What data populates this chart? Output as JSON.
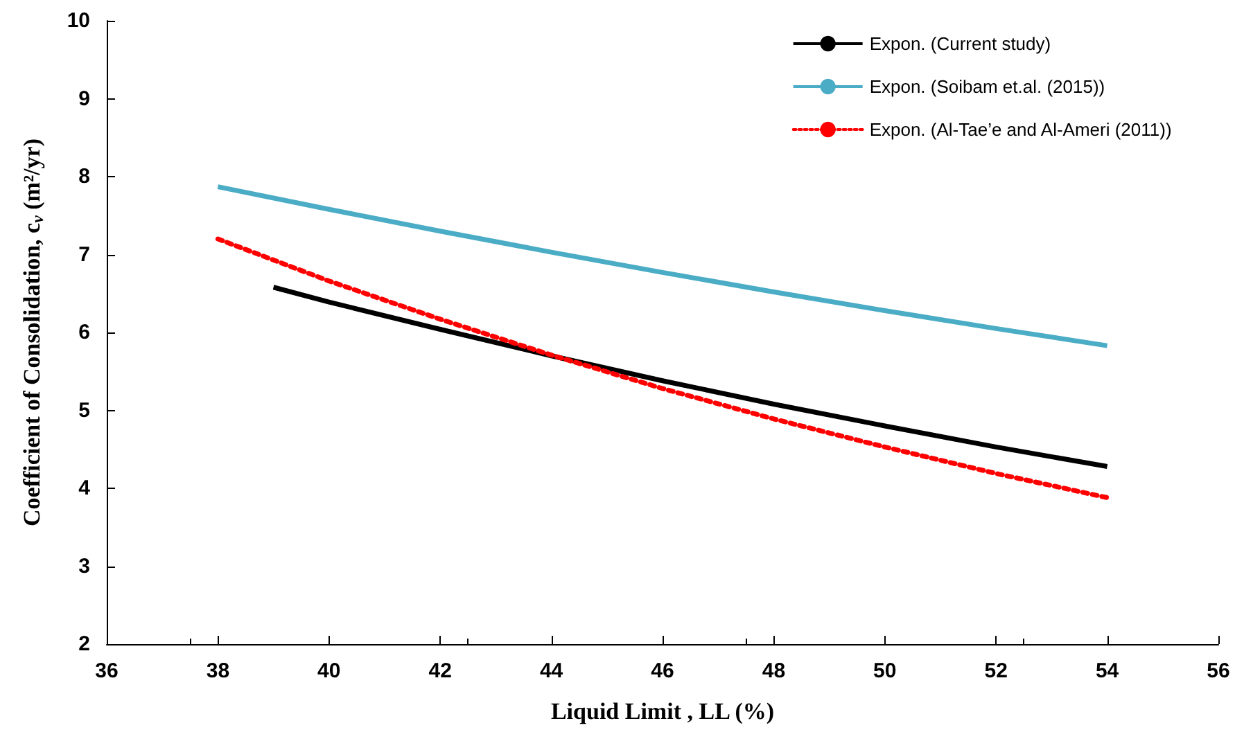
{
  "chart_data": {
    "type": "line",
    "xlabel": "Liquid Limit , LL (%)",
    "ylabel": "Coefficient of Consolidation, c$_{v}$ (m²/yr)",
    "xlim": [
      36,
      56
    ],
    "xticks": [
      36,
      38,
      40,
      42,
      44,
      46,
      48,
      50,
      52,
      54,
      56
    ],
    "ylim": [
      2,
      10
    ],
    "yticks": [
      2,
      3,
      4,
      5,
      6,
      7,
      8,
      9,
      10
    ],
    "grid": false,
    "legend": "top right",
    "marker": "none",
    "series": [
      {
        "name": "Expon. (Current study)",
        "color": "#000000",
        "line_style": "solid",
        "x": [
          39,
          40,
          42,
          44,
          46,
          48,
          50,
          52,
          54
        ],
        "values": [
          6.58,
          6.39,
          6.04,
          5.7,
          5.38,
          5.08,
          4.8,
          4.53,
          4.28
        ]
      },
      {
        "name": "Expon. (Soibam et.al. (2015))",
        "color": "#4bacc6",
        "line_style": "solid",
        "x": [
          38,
          40,
          42,
          44,
          46,
          48,
          50,
          52,
          54
        ],
        "values": [
          7.87,
          7.58,
          7.3,
          7.03,
          6.77,
          6.52,
          6.28,
          6.05,
          5.83
        ]
      },
      {
        "name": "Expon. (Al-Tae’e and Al-Ameri (2011))",
        "color": "#ff0000",
        "line_style": "dotted",
        "x": [
          38,
          40,
          42,
          44,
          46,
          48,
          50,
          52,
          54
        ],
        "values": [
          7.2,
          6.66,
          6.17,
          5.71,
          5.28,
          4.89,
          4.53,
          4.19,
          3.88
        ]
      }
    ]
  }
}
